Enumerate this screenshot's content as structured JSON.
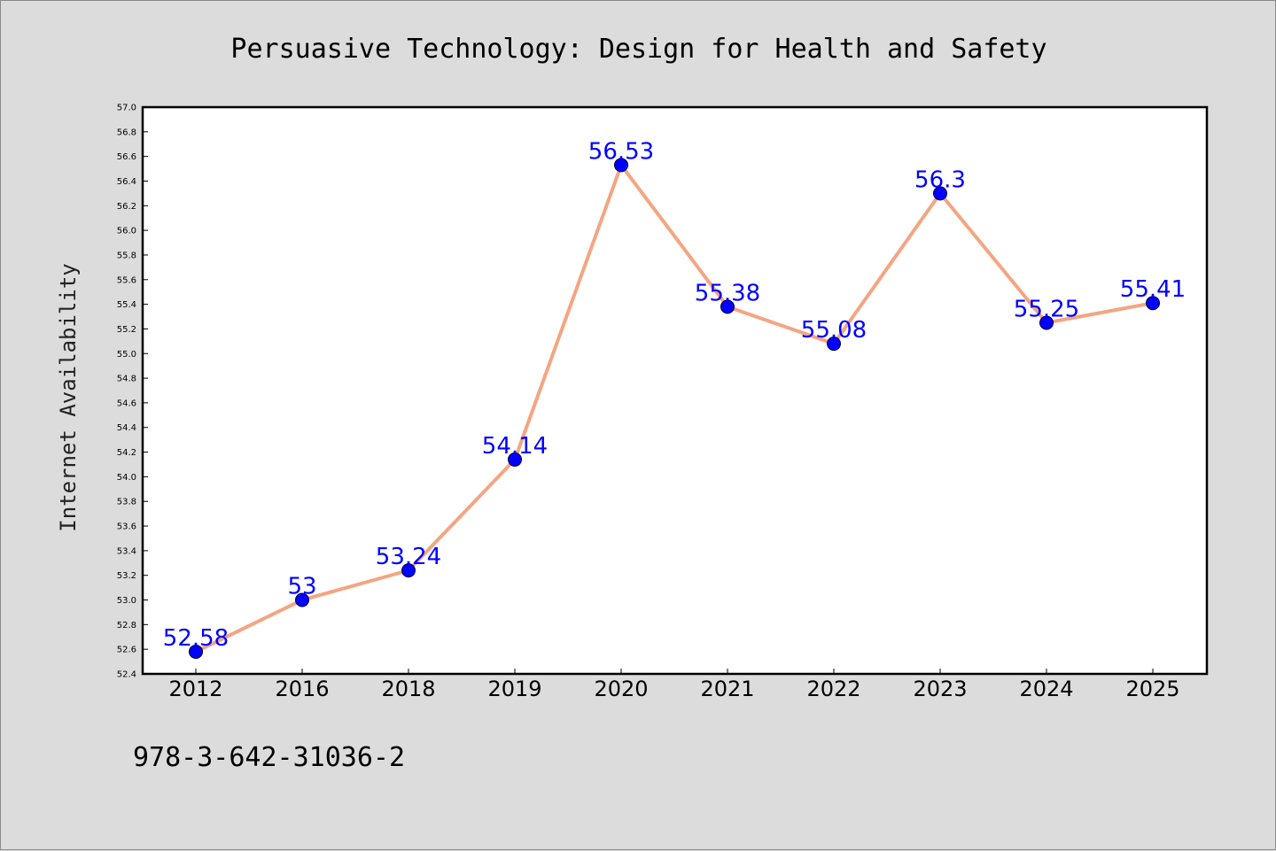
{
  "chart_data": {
    "type": "line",
    "title": "Persuasive Technology: Design for Health and Safety",
    "xlabel": "",
    "ylabel": "Internet Availability",
    "categories": [
      "2012",
      "2016",
      "2018",
      "2019",
      "2020",
      "2021",
      "2022",
      "2023",
      "2024",
      "2025"
    ],
    "series": [
      {
        "values": [
          52.58,
          53,
          53.24,
          54.14,
          56.53,
          55.38,
          55.08,
          56.3,
          55.25,
          55.41
        ],
        "labels": [
          "52.58",
          "53",
          "53.24",
          "54.14",
          "56.53",
          "55.38",
          "55.08",
          "56.3",
          "55.25",
          "55.41"
        ]
      }
    ],
    "ylim": [
      52.4,
      57.0
    ],
    "ytick_step": 0.2,
    "grid": false,
    "legend": "none",
    "colors": {
      "line": "#f4a582",
      "marker": "#0000ff",
      "label": "#0000ff",
      "background": "#dcdcdc",
      "plot_background": "#ffffff"
    }
  },
  "footer": {
    "isbn": "978-3-642-31036-2"
  }
}
